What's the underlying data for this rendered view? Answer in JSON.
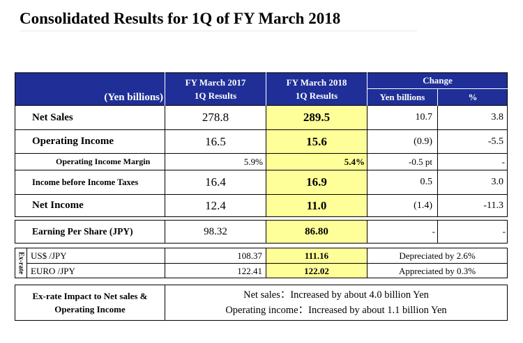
{
  "title": "Consolidated Results for 1Q of FY March 2018",
  "header": {
    "unit": "(Yen billions)",
    "col_prev_line1": "FY March 2017",
    "col_prev_line2": "1Q Results",
    "col_curr_line1": "FY March 2018",
    "col_curr_line2": "1Q Results",
    "change": "Change",
    "change_yen": "Yen billions",
    "change_pct": "%"
  },
  "rows": [
    {
      "label": "Net Sales",
      "prev": "278.8",
      "curr": "289.5",
      "chg": "10.7",
      "pct": "3.8"
    },
    {
      "label": "Operating Income",
      "prev": "16.5",
      "curr": "15.6",
      "chg": "(0.9)",
      "pct": "-5.5"
    },
    {
      "label": "Operating Income Margin",
      "prev": "5.9%",
      "curr": "5.4%",
      "chg": "-0.5 pt",
      "pct": "-"
    },
    {
      "label": "Income before Income Taxes",
      "prev": "16.4",
      "curr": "16.9",
      "chg": "0.5",
      "pct": "3.0"
    },
    {
      "label": "Net Income",
      "prev": "12.4",
      "curr": "11.0",
      "chg": "(1.4)",
      "pct": "-11.3"
    }
  ],
  "eps": {
    "label": "Earning Per Share (JPY)",
    "prev": "98.32",
    "curr": "86.80",
    "chg": "-",
    "pct": "-"
  },
  "exrate": {
    "side_label": "Ex-rate",
    "usd": {
      "label": "US$ /JPY",
      "prev": "108.37",
      "curr": "111.16",
      "note": "Depreciated by 2.6%"
    },
    "euro": {
      "label": "EURO /JPY",
      "prev": "122.41",
      "curr": "122.02",
      "note": "Appreciated by 0.3%"
    }
  },
  "impact": {
    "label_line1": "Ex-rate Impact to Net sales &",
    "label_line2": "Operating Income",
    "line1": "Net sales：Increased by about 4.0 billion Yen",
    "line2": "Operating income：Increased by about 1.1 billion Yen"
  }
}
